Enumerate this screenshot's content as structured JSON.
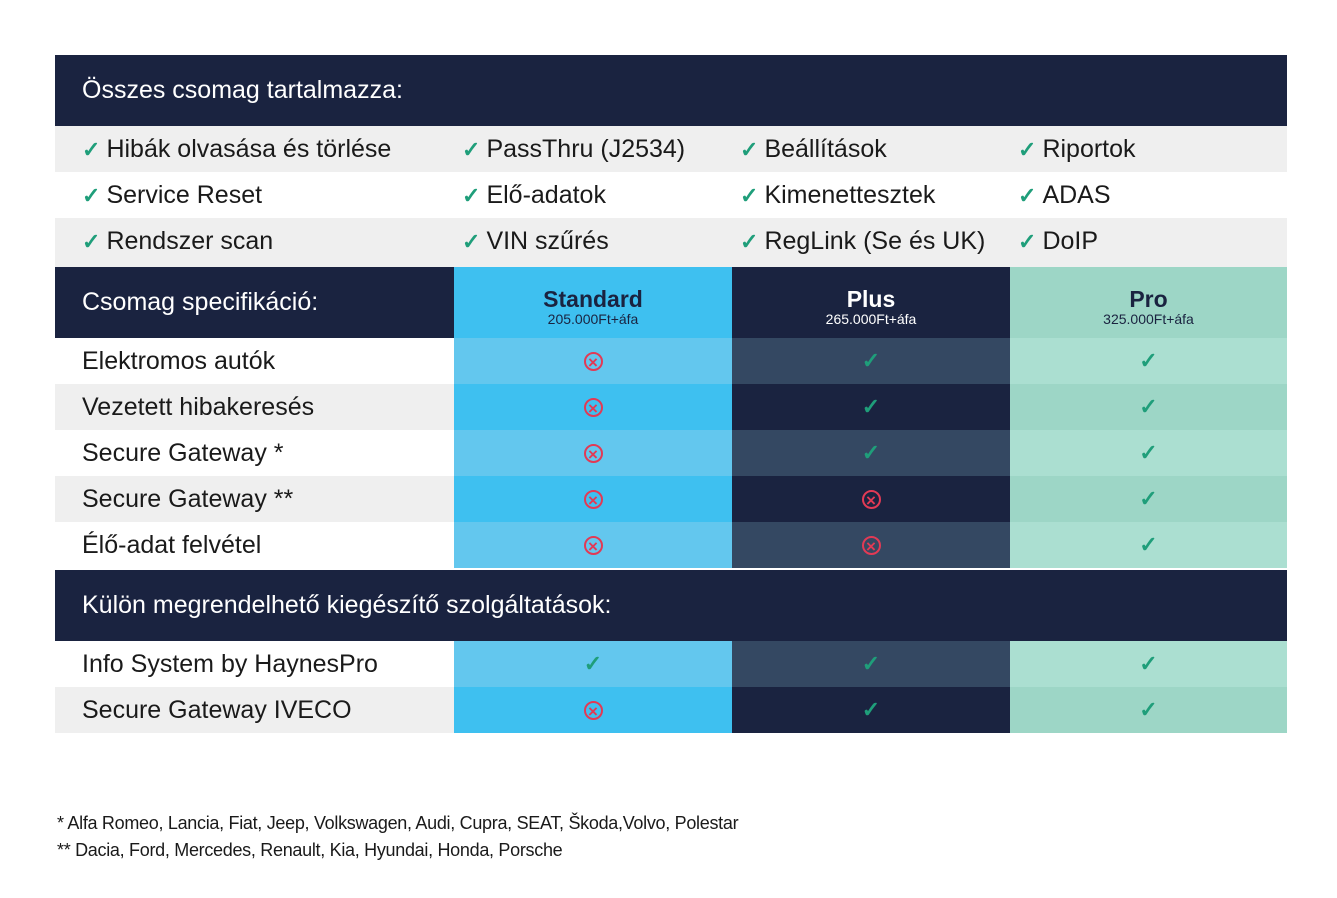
{
  "included": {
    "title": "Összes csomag tartalmazza:",
    "check_glyph": "✓",
    "rows": [
      [
        "Hibák olvasása és törlése",
        "PassThru (J2534)",
        "Beállítások",
        "Riportok"
      ],
      [
        "Service Reset",
        "Elő-adatok",
        "Kimenettesztek",
        "ADAS"
      ],
      [
        "Rendszer scan",
        "VIN szűrés",
        "RegLink (Se és UK)",
        "DoIP"
      ]
    ]
  },
  "spec": {
    "title": "Csomag specifikáció:",
    "packages": [
      {
        "name": "Standard",
        "price": "205.000Ft+áfa",
        "color": "#3ec0f0"
      },
      {
        "name": "Plus",
        "price": "265.000Ft+áfa",
        "color": "#1a2340"
      },
      {
        "name": "Pro",
        "price": "325.000Ft+áfa",
        "color": "#9dd6c6"
      }
    ],
    "features": [
      {
        "label": "Elektromos autók",
        "values": [
          false,
          true,
          true
        ]
      },
      {
        "label": "Vezetett hibakeresés",
        "values": [
          false,
          true,
          true
        ]
      },
      {
        "label": "Secure Gateway *",
        "values": [
          false,
          true,
          true
        ]
      },
      {
        "label": "Secure Gateway **",
        "values": [
          false,
          false,
          true
        ]
      },
      {
        "label": "Élő-adat felvétel",
        "values": [
          false,
          false,
          true
        ]
      }
    ]
  },
  "addons": {
    "title": "Külön megrendelhető kiegészítő szolgáltatások:",
    "features": [
      {
        "label": "Info System by HaynesPro",
        "values": [
          true,
          true,
          true
        ]
      },
      {
        "label": "Secure Gateway IVECO",
        "values": [
          false,
          true,
          true
        ]
      }
    ]
  },
  "footnotes": [
    "*   Alfa Romeo, Lancia, Fiat, Jeep, Volkswagen, Audi, Cupra, SEAT, Škoda,Volvo, Polestar",
    "** Dacia, Ford, Mercedes, Renault, Kia, Hyundai, Honda, Porsche"
  ],
  "colors": {
    "navy": "#1a2340",
    "check": "#1f9e7a",
    "cross": "#e23a55"
  }
}
